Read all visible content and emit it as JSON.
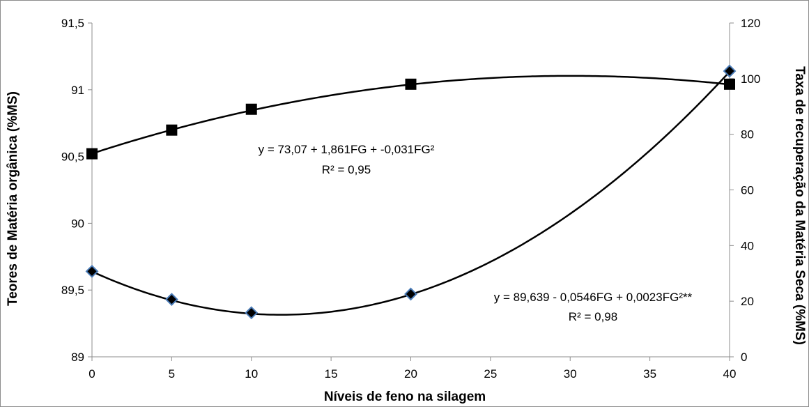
{
  "chart_data": {
    "type": "scatter",
    "title": "",
    "xlabel": "Níveis de feno na silagem",
    "ylabel_left": "Teores de Matéria orgânica (%MS)",
    "ylabel_right": "Taxa de recuperação da Matéria Seca (%MS)",
    "x_ticks": [
      "0",
      "5",
      "10",
      "15",
      "20",
      "25",
      "30",
      "35",
      "40"
    ],
    "y_left_ticks": [
      "89",
      "89,5",
      "90",
      "90,5",
      "91",
      "91,5"
    ],
    "y_right_ticks": [
      "0",
      "20",
      "40",
      "60",
      "80",
      "100",
      "120"
    ],
    "xlim": [
      0,
      40
    ],
    "ylim_left": [
      89,
      91.5
    ],
    "ylim_right": [
      0,
      120
    ],
    "grid": false,
    "series": [
      {
        "marker": "square",
        "axis": "right",
        "color": "#000000",
        "x": [
          0,
          5,
          10,
          20,
          40
        ],
        "y": [
          73,
          81.5,
          89,
          98,
          98
        ],
        "fit": {
          "a": 73.07,
          "b": 1.861,
          "c": -0.031
        },
        "equation": "y = 73,07 + 1,861FG + -0,031FG²",
        "r2": "R² = 0,95"
      },
      {
        "marker": "diamond",
        "axis": "left",
        "color": "#4a7bb7",
        "x": [
          0,
          5,
          10,
          20,
          40
        ],
        "y": [
          89.64,
          89.43,
          89.33,
          89.47,
          91.14
        ],
        "fit": {
          "a": 89.639,
          "b": -0.0546,
          "c": 0.0023
        },
        "equation": "y = 89,639 - 0,0546FG + 0,0023FG²**",
        "r2": "R² = 0,98"
      }
    ]
  }
}
